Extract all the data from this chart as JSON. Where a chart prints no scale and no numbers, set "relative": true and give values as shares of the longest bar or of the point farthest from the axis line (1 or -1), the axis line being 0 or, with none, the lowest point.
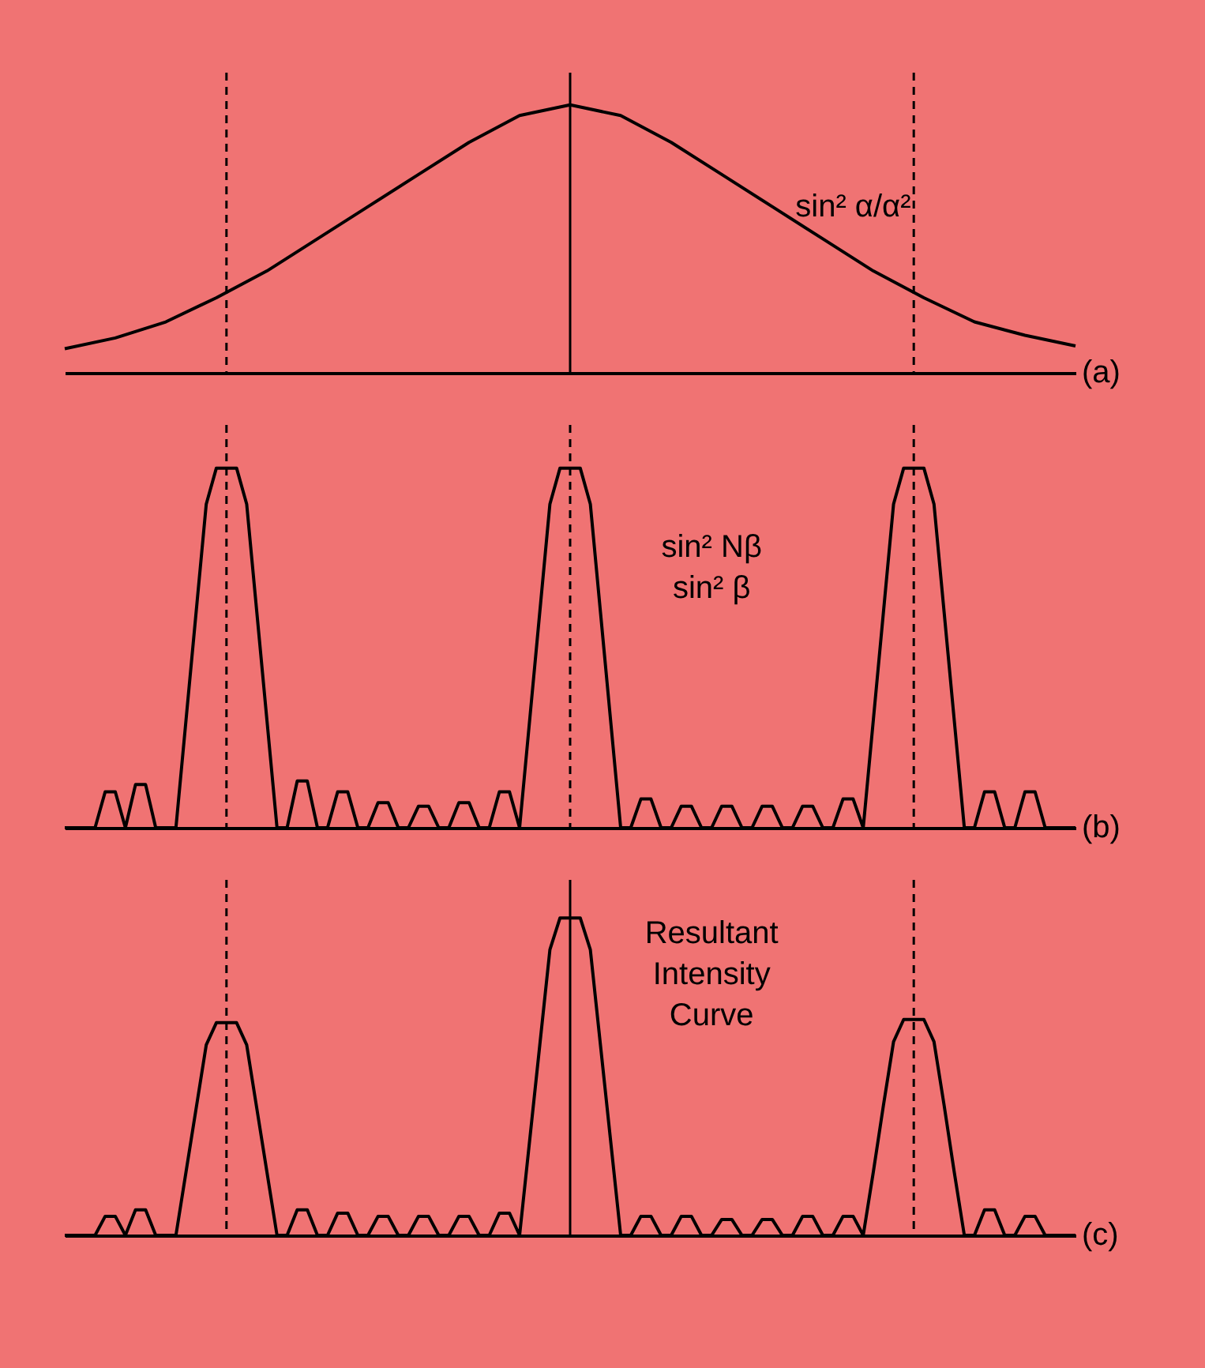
{
  "chart_data": [
    {
      "type": "line",
      "relative": true,
      "color": "#000000",
      "line_style": "solid",
      "marker": "none",
      "grid": "x",
      "categories": [
        null,
        null,
        null,
        null,
        null,
        null,
        null,
        null,
        null,
        null,
        null,
        null,
        null,
        null,
        null,
        null,
        null,
        null,
        null,
        null,
        null
      ],
      "values": [
        0.09,
        0.13,
        0.19,
        0.28,
        0.38,
        0.5,
        0.62,
        0.74,
        0.86,
        0.96,
        1,
        0.96,
        0.86,
        0.74,
        0.62,
        0.5,
        0.38,
        0.28,
        0.19,
        0.14,
        0.1
      ],
      "annotations": [
        "sin² α/α²",
        "(a)"
      ]
    },
    {
      "type": "line",
      "relative": true,
      "color": "#000000",
      "line_style": "solid",
      "marker": "none",
      "grid": "x",
      "categories": [
        null,
        null,
        null,
        null,
        null,
        null,
        null,
        null,
        null,
        null,
        null,
        null,
        null,
        null,
        null,
        null,
        null,
        null,
        null,
        null,
        null,
        null,
        null,
        null,
        null,
        null,
        null,
        null,
        null,
        null,
        null,
        null,
        null,
        null,
        null,
        null,
        null,
        null,
        null,
        null,
        null,
        null,
        null,
        null,
        null,
        null,
        null,
        null,
        null,
        null,
        null,
        null,
        null,
        null,
        null,
        null,
        null,
        null,
        null,
        null,
        null,
        null,
        null,
        null,
        null,
        null,
        null,
        null,
        null,
        null,
        null,
        null,
        null,
        null,
        null,
        null,
        null,
        null,
        null,
        null,
        null,
        null,
        null,
        null,
        null,
        null,
        null,
        null,
        null,
        null,
        null,
        null,
        null,
        null,
        null,
        null,
        null,
        null,
        null,
        null,
        null
      ],
      "values": [
        0,
        0,
        0,
        0,
        0.1,
        0.1,
        0,
        0.12,
        0.12,
        0,
        0,
        0,
        0.3,
        0.6,
        0.9,
        1,
        1,
        1,
        0.9,
        0.6,
        0.3,
        0,
        0,
        0.13,
        0.13,
        0,
        0,
        0.1,
        0.1,
        0,
        0,
        0.07,
        0.07,
        0,
        0,
        0.06,
        0.06,
        0,
        0,
        0.07,
        0.07,
        0,
        0,
        0.1,
        0.1,
        0,
        0.3,
        0.6,
        0.9,
        1,
        1,
        1,
        0.9,
        0.6,
        0.3,
        0,
        0,
        0.08,
        0.08,
        0,
        0,
        0.06,
        0.06,
        0,
        0,
        0.06,
        0.06,
        0,
        0,
        0.06,
        0.06,
        0,
        0,
        0.06,
        0.06,
        0,
        0,
        0.08,
        0.08,
        0,
        0.3,
        0.6,
        0.9,
        1,
        1,
        1,
        0.9,
        0.6,
        0.3,
        0,
        0,
        0.1,
        0.1,
        0,
        0,
        0.1,
        0.1,
        0,
        0,
        0,
        0
      ],
      "annotations": [
        "sin² Nβ\nsin² β",
        "(b)"
      ]
    },
    {
      "type": "line",
      "relative": true,
      "color": "#000000",
      "line_style": "solid",
      "marker": "none",
      "grid": "x",
      "categories": [
        null,
        null,
        null,
        null,
        null,
        null,
        null,
        null,
        null,
        null,
        null,
        null,
        null,
        null,
        null,
        null,
        null,
        null,
        null,
        null,
        null,
        null,
        null,
        null,
        null,
        null,
        null,
        null,
        null,
        null,
        null,
        null,
        null,
        null,
        null,
        null,
        null,
        null,
        null,
        null,
        null,
        null,
        null,
        null,
        null,
        null,
        null,
        null,
        null,
        null,
        null,
        null,
        null,
        null,
        null,
        null,
        null,
        null,
        null,
        null,
        null,
        null,
        null,
        null,
        null,
        null,
        null,
        null,
        null,
        null,
        null,
        null,
        null,
        null,
        null,
        null,
        null,
        null,
        null,
        null,
        null,
        null,
        null,
        null,
        null,
        null,
        null,
        null,
        null,
        null,
        null,
        null,
        null,
        null,
        null,
        null,
        null,
        null,
        null,
        null,
        null
      ],
      "values": [
        0,
        0,
        0,
        0,
        0.06,
        0.06,
        0,
        0.08,
        0.08,
        0,
        0,
        0,
        0.2,
        0.4,
        0.6,
        0.67,
        0.67,
        0.67,
        0.6,
        0.4,
        0.2,
        0,
        0,
        0.08,
        0.08,
        0,
        0,
        0.07,
        0.07,
        0,
        0,
        0.06,
        0.06,
        0,
        0,
        0.06,
        0.06,
        0,
        0,
        0.06,
        0.06,
        0,
        0,
        0.07,
        0.07,
        0,
        0.3,
        0.6,
        0.9,
        1,
        1,
        1,
        0.9,
        0.6,
        0.3,
        0,
        0,
        0.06,
        0.06,
        0,
        0,
        0.06,
        0.06,
        0,
        0,
        0.05,
        0.05,
        0,
        0,
        0.05,
        0.05,
        0,
        0,
        0.06,
        0.06,
        0,
        0,
        0.06,
        0.06,
        0,
        0.2,
        0.41,
        0.61,
        0.68,
        0.68,
        0.68,
        0.61,
        0.41,
        0.2,
        0,
        0,
        0.08,
        0.08,
        0,
        0,
        0.06,
        0.06,
        0,
        0,
        0,
        0
      ],
      "annotations": [
        "Resultant\nIntensity\nCurve",
        "(c)"
      ]
    }
  ]
}
